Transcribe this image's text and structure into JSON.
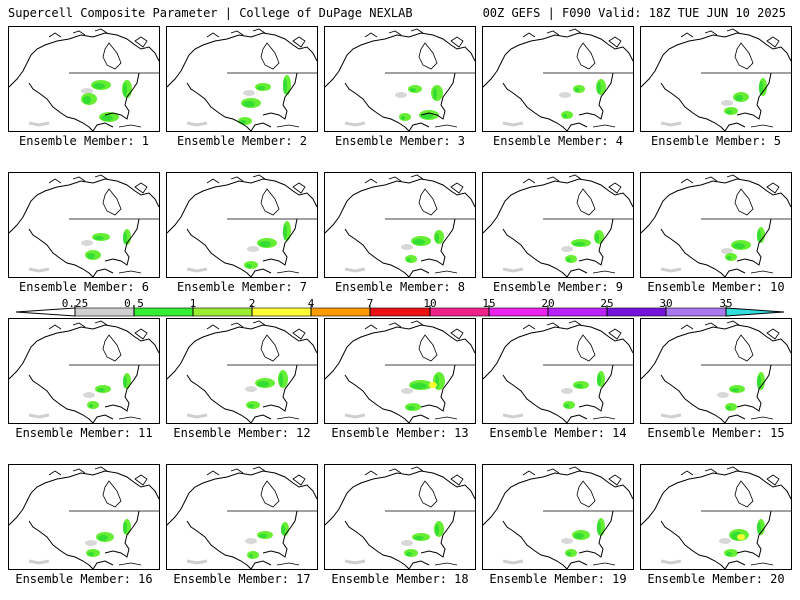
{
  "header": {
    "left_title": "Supercell Composite Parameter | College of DuPage NEXLAB",
    "right_title": "00Z GEFS | F090 Valid: 18Z TUE JUN 10 2025"
  },
  "panels": [
    {
      "label": "Ensemble Member: 1"
    },
    {
      "label": "Ensemble Member: 2"
    },
    {
      "label": "Ensemble Member: 3"
    },
    {
      "label": "Ensemble Member: 4"
    },
    {
      "label": "Ensemble Member: 5"
    },
    {
      "label": "Ensemble Member: 6"
    },
    {
      "label": "Ensemble Member: 7"
    },
    {
      "label": "Ensemble Member: 8"
    },
    {
      "label": "Ensemble Member: 9"
    },
    {
      "label": "Ensemble Member: 10"
    },
    {
      "label": "Ensemble Member: 11"
    },
    {
      "label": "Ensemble Member: 12"
    },
    {
      "label": "Ensemble Member: 13"
    },
    {
      "label": "Ensemble Member: 14"
    },
    {
      "label": "Ensemble Member: 15"
    },
    {
      "label": "Ensemble Member: 16"
    },
    {
      "label": "Ensemble Member: 17"
    },
    {
      "label": "Ensemble Member: 18"
    },
    {
      "label": "Ensemble Member: 19"
    },
    {
      "label": "Ensemble Member: 20"
    }
  ],
  "colorbar": {
    "labels": [
      "0.25",
      "0.5",
      "1",
      "2",
      "4",
      "7",
      "10",
      "15",
      "20",
      "25",
      "30",
      "35"
    ],
    "colors": [
      "#ffffff",
      "#d0d0d0",
      "#33ee33",
      "#99ee33",
      "#ffff33",
      "#ff9900",
      "#ee1111",
      "#ee2288",
      "#ee22ee",
      "#bb22ff",
      "#7711dd",
      "#aa77ee",
      "#33dddd"
    ]
  }
}
